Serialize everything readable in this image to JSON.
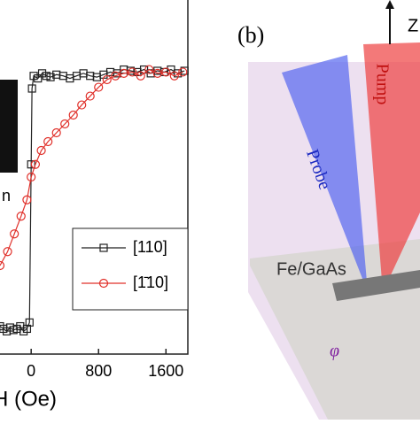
{
  "chart_data": {
    "type": "line",
    "xlabel": "H (Oe)",
    "inset_text": "n",
    "xlim": [
      -370,
      1860
    ],
    "ylim": [
      -1.2,
      1.6
    ],
    "xticks": [
      0,
      800,
      1600
    ],
    "series": [
      {
        "name": "[110]",
        "color": "#222222",
        "marker": "square",
        "x": [
          -370,
          -330,
          -290,
          -250,
          -210,
          -170,
          -130,
          -90,
          -50,
          -20,
          0,
          10,
          30,
          80,
          130,
          180,
          230,
          300,
          380,
          460,
          540,
          620,
          700,
          780,
          860,
          940,
          1020,
          1100,
          1180,
          1260,
          1340,
          1420,
          1500,
          1580,
          1660,
          1740,
          1820
        ],
        "values": [
          -0.98,
          -1.0,
          -1.02,
          -0.99,
          -1.01,
          -1.0,
          -0.98,
          -1.02,
          -1.0,
          -0.95,
          0.3,
          0.9,
          1.0,
          0.98,
          1.02,
          1.0,
          0.99,
          1.01,
          1.0,
          0.98,
          1.0,
          1.02,
          1.0,
          0.99,
          1.01,
          1.03,
          1.02,
          1.05,
          1.04,
          1.03,
          1.05,
          1.02,
          1.04,
          1.03,
          1.05,
          1.02,
          1.04
        ]
      },
      {
        "name": "[1̄10]",
        "color": "#e0302a",
        "marker": "circle",
        "x": [
          -370,
          -280,
          -200,
          -120,
          -50,
          0,
          50,
          120,
          200,
          300,
          400,
          500,
          600,
          700,
          800,
          900,
          1000,
          1100,
          1200,
          1300,
          1400,
          1500,
          1600,
          1700,
          1800
        ],
        "values": [
          -0.5,
          -0.39,
          -0.25,
          -0.11,
          0.02,
          0.2,
          0.3,
          0.41,
          0.48,
          0.55,
          0.62,
          0.69,
          0.77,
          0.84,
          0.91,
          0.97,
          1.0,
          1.02,
          1.03,
          1.0,
          1.05,
          1.02,
          1.03,
          1.0,
          1.03
        ]
      }
    ]
  },
  "diagram": {
    "panel_label": "(b)",
    "axis_label": "Z",
    "pump_label": "Pump",
    "probe_label": "Probe",
    "sample_label": "Fe/GaAs",
    "angle_label": "φ"
  }
}
